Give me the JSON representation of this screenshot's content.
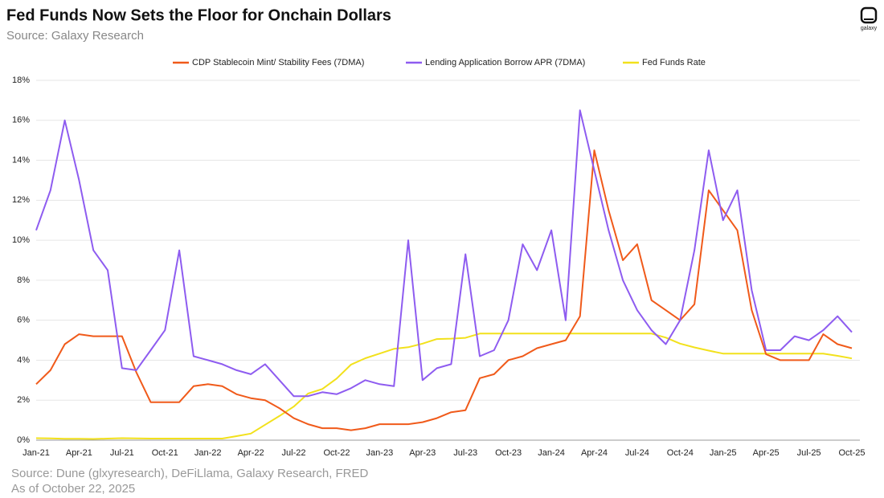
{
  "chart_data": {
    "type": "line",
    "title": "Fed Funds Now Sets the Floor for Onchain Dollars",
    "subtitle": "Source: Galaxy Research",
    "logo": "galaxy",
    "footnotes": [
      "Source: Dune (glxyresearch), DeFiLlama, Galaxy Research, FRED",
      "As of October 22, 2025"
    ],
    "categories": [
      "Jan-21",
      null,
      null,
      "Apr-21",
      null,
      null,
      "Jul-21",
      null,
      null,
      "Oct-21",
      null,
      null,
      "Jan-22",
      null,
      null,
      "Apr-22",
      null,
      null,
      "Jul-22",
      null,
      null,
      "Oct-22",
      null,
      null,
      "Jan-23",
      null,
      null,
      "Apr-23",
      null,
      null,
      "Jul-23",
      null,
      null,
      "Oct-23",
      null,
      null,
      "Jan-24",
      null,
      null,
      "Apr-24",
      null,
      null,
      "Jul-24",
      null,
      null,
      "Oct-24",
      null,
      null,
      "Jan-25",
      null,
      null,
      "Apr-25",
      null,
      null,
      "Jul-25",
      null,
      null,
      "Oct-25"
    ],
    "series": [
      {
        "name": "CDP Stablecoin Mint/ Stability Fees (7DMA)",
        "color": "#f05a1a",
        "values": [
          2.8,
          3.5,
          4.8,
          5.3,
          5.2,
          5.2,
          5.2,
          3.4,
          1.9,
          1.9,
          1.9,
          2.7,
          2.8,
          2.7,
          2.3,
          2.1,
          2.0,
          1.6,
          1.1,
          0.8,
          0.6,
          0.6,
          0.5,
          0.6,
          0.8,
          0.8,
          0.8,
          0.9,
          1.1,
          1.4,
          1.5,
          3.1,
          3.3,
          4.0,
          4.2,
          4.6,
          4.8,
          5.0,
          6.2,
          14.5,
          11.5,
          9.0,
          9.8,
          7.0,
          6.5,
          6.0,
          6.8,
          12.5,
          11.5,
          10.5,
          6.5,
          4.3,
          4.0,
          4.0,
          4.0,
          5.3,
          4.8,
          4.6
        ]
      },
      {
        "name": "Lending Application Borrow APR (7DMA)",
        "color": "#8e5cf0",
        "values": [
          10.5,
          12.5,
          16,
          13,
          9.5,
          8.5,
          3.6,
          3.5,
          4.5,
          5.5,
          9.5,
          4.2,
          4.0,
          3.8,
          3.5,
          3.3,
          3.8,
          3.0,
          2.2,
          2.2,
          2.4,
          2.3,
          2.6,
          3.0,
          2.8,
          2.7,
          10.0,
          3.0,
          3.6,
          3.8,
          9.3,
          4.2,
          4.5,
          6.0,
          9.8,
          8.5,
          10.5,
          6.0,
          16.5,
          13.5,
          10.5,
          8.0,
          6.5,
          5.5,
          4.8,
          6.0,
          9.5,
          14.5,
          11.0,
          12.5,
          7.5,
          4.5,
          4.5,
          5.2,
          5.0,
          5.5,
          6.2,
          5.4
        ]
      },
      {
        "name": "Fed Funds Rate",
        "color": "#f2e11c",
        "values": [
          0.1,
          0.09,
          0.07,
          0.07,
          0.06,
          0.08,
          0.1,
          0.09,
          0.08,
          0.08,
          0.08,
          0.08,
          0.08,
          0.08,
          0.2,
          0.33,
          0.77,
          1.21,
          1.68,
          2.33,
          2.56,
          3.08,
          3.78,
          4.1,
          4.33,
          4.57,
          4.65,
          4.83,
          5.06,
          5.08,
          5.12,
          5.33,
          5.33,
          5.33,
          5.33,
          5.33,
          5.33,
          5.33,
          5.33,
          5.33,
          5.33,
          5.33,
          5.33,
          5.33,
          5.13,
          4.83,
          4.64,
          4.48,
          4.33,
          4.33,
          4.33,
          4.33,
          4.33,
          4.33,
          4.33,
          4.33,
          4.22,
          4.09
        ]
      }
    ],
    "ylim": [
      0,
      18
    ],
    "yticks": [
      {
        "value": 0,
        "label": "0%"
      },
      {
        "value": 2,
        "label": "2%"
      },
      {
        "value": 4,
        "label": "4%"
      },
      {
        "value": 6,
        "label": "6%"
      },
      {
        "value": 8,
        "label": "8%"
      },
      {
        "value": 10,
        "label": "10%"
      },
      {
        "value": 12,
        "label": "12%"
      },
      {
        "value": 14,
        "label": "14%"
      },
      {
        "value": 16,
        "label": "16%"
      },
      {
        "value": 18,
        "label": "18%"
      }
    ],
    "grid": true
  }
}
